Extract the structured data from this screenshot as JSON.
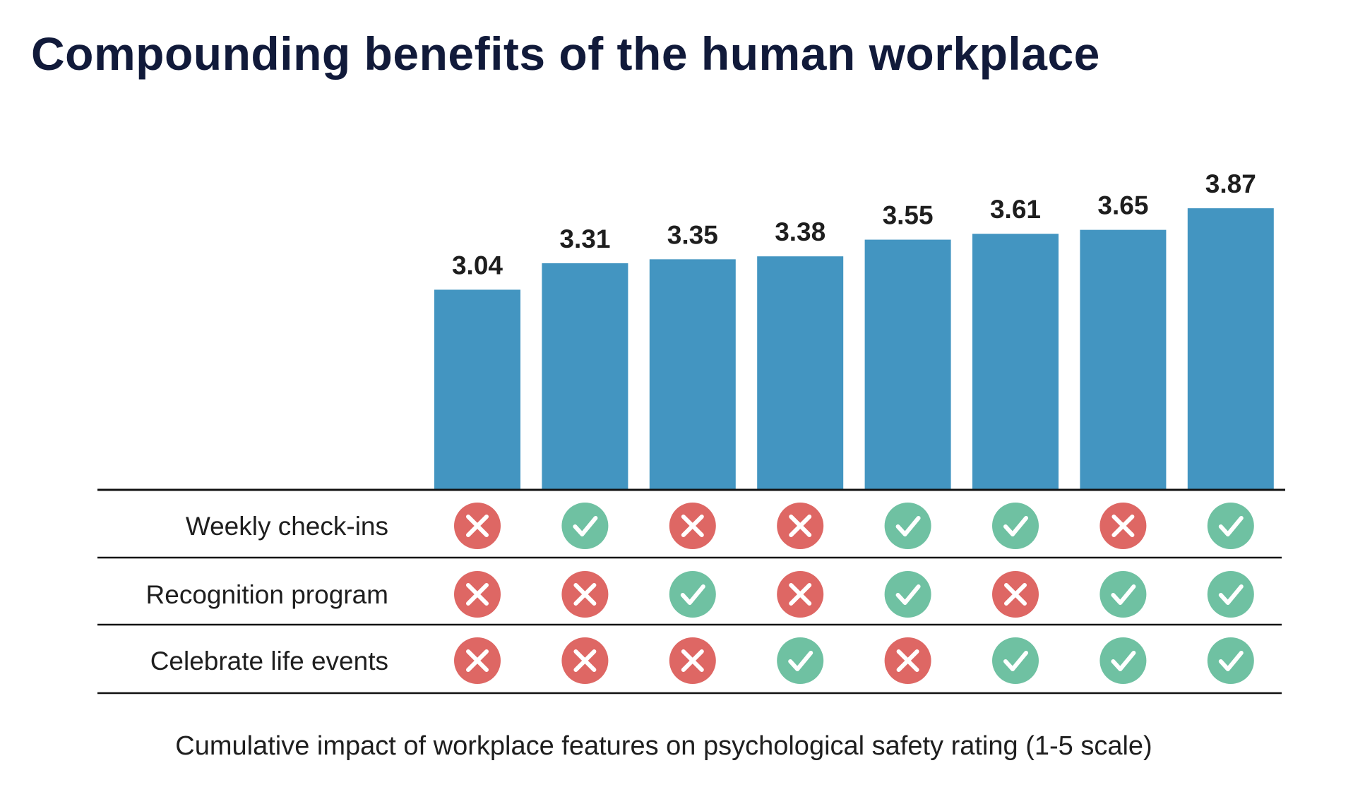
{
  "chart_data": {
    "type": "bar",
    "title": "Compounding benefits of the human workplace",
    "caption": "Cumulative impact of workplace features on psychological safety rating (1-5 scale)",
    "values": [
      3.04,
      3.31,
      3.35,
      3.38,
      3.55,
      3.61,
      3.65,
      3.87
    ],
    "value_labels": [
      "3.04",
      "3.31",
      "3.35",
      "3.38",
      "3.55",
      "3.61",
      "3.65",
      "3.87"
    ],
    "ylim": [
      1,
      5
    ],
    "grid": false,
    "features": [
      {
        "label": "Weekly check-ins",
        "present": [
          false,
          true,
          false,
          false,
          true,
          true,
          false,
          true
        ]
      },
      {
        "label": "Recognition program",
        "present": [
          false,
          false,
          true,
          false,
          true,
          false,
          true,
          true
        ]
      },
      {
        "label": "Celebrate life events",
        "present": [
          false,
          false,
          false,
          true,
          false,
          true,
          true,
          true
        ]
      }
    ],
    "icons": {
      "present": "check-icon",
      "absent": "x-icon"
    },
    "colors": {
      "bar": "#4395c1",
      "present": "#6fc1a2",
      "absent": "#de6764",
      "title": "#111a3a"
    }
  }
}
